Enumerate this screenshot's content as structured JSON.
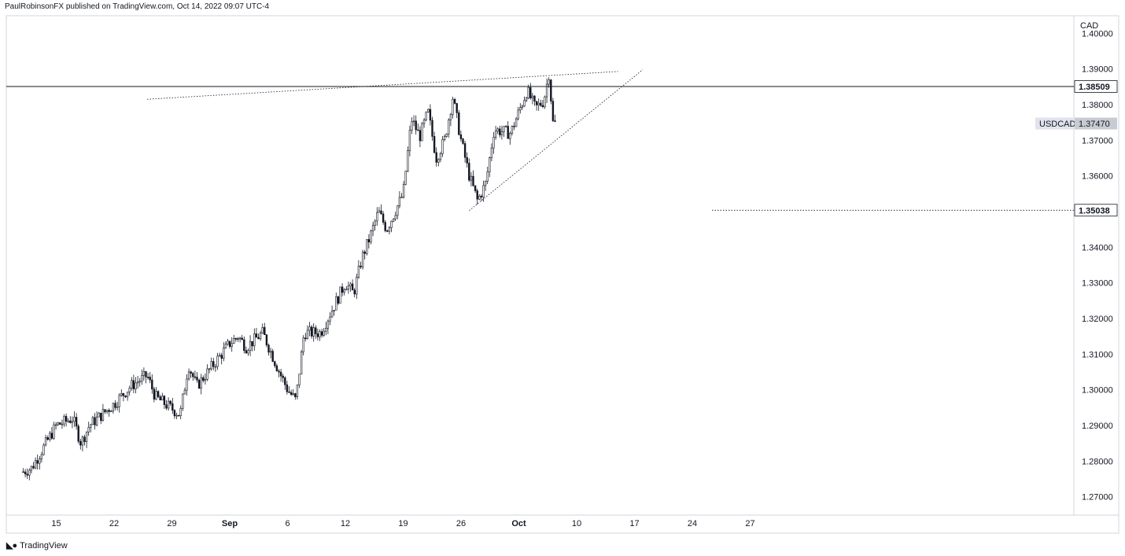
{
  "header": {
    "attribution": "PaulRobinsonFX published on TradingView.com, Oct 14, 2022 09:07 UTC-4"
  },
  "footer": {
    "brand": "TradingView",
    "logo_icon": "tradingview-logo-icon"
  },
  "colors": {
    "candle": "#131722",
    "grid_border": "#d1d4dc",
    "label_dark": "#131722",
    "label_gray": "#c8cbd1",
    "annotation": "#131722"
  },
  "chart_data": {
    "type": "candlestick",
    "symbol_label": "USDCAD",
    "currency": "CAD",
    "y_ticks": [
      "1.40000",
      "1.39000",
      "1.38000",
      "1.37000",
      "1.36000",
      "1.35000",
      "1.34000",
      "1.33000",
      "1.32000",
      "1.31000",
      "1.30000",
      "1.29000",
      "1.28000",
      "1.27000"
    ],
    "x_ticks": [
      "15",
      "22",
      "29",
      "Sep",
      "6",
      "12",
      "19",
      "26",
      "Oct",
      "10",
      "17",
      "24",
      "27"
    ],
    "x_ticks_bold": [
      "Sep",
      "Oct"
    ],
    "ylim": [
      1.2655,
      1.4045
    ],
    "last_price": {
      "label": "USDCAD",
      "value": "1.37470"
    },
    "horizontal_levels": [
      {
        "value": "1.38509",
        "style": "solid"
      },
      {
        "value": "1.35038",
        "style": "dotted"
      }
    ],
    "trendlines": [
      {
        "name": "upper-wedge-line",
        "from": [
          "2022-08-26",
          1.3815
        ],
        "to": [
          "2022-10-22",
          1.3893
        ]
      },
      {
        "name": "lower-wedge-line",
        "from": [
          "2022-10-04",
          1.3503
        ],
        "to": [
          "2022-10-25",
          1.3898
        ]
      }
    ],
    "trend_path": [
      [
        "2022-08-11",
        1.277
      ],
      [
        "2022-08-12",
        1.278
      ],
      [
        "2022-08-15",
        1.29
      ],
      [
        "2022-08-17",
        1.292
      ],
      [
        "2022-08-18",
        1.285
      ],
      [
        "2022-08-19",
        1.29
      ],
      [
        "2022-08-22",
        1.296
      ],
      [
        "2022-08-24",
        1.301
      ],
      [
        "2022-08-26",
        1.304
      ],
      [
        "2022-08-27",
        1.298
      ],
      [
        "2022-08-30",
        1.293
      ],
      [
        "2022-08-31",
        1.307
      ],
      [
        "2022-09-01",
        1.301
      ],
      [
        "2022-09-02",
        1.304
      ],
      [
        "2022-09-05",
        1.313
      ],
      [
        "2022-09-06",
        1.315
      ],
      [
        "2022-09-07",
        1.312
      ],
      [
        "2022-09-08",
        1.314
      ],
      [
        "2022-09-09",
        1.316
      ],
      [
        "2022-09-11",
        1.305
      ],
      [
        "2022-09-12",
        1.3
      ],
      [
        "2022-09-13",
        1.297
      ],
      [
        "2022-09-14",
        1.316
      ],
      [
        "2022-09-16",
        1.316
      ],
      [
        "2022-09-19",
        1.33
      ],
      [
        "2022-09-20",
        1.327
      ],
      [
        "2022-09-21",
        1.337
      ],
      [
        "2022-09-22",
        1.343
      ],
      [
        "2022-09-23",
        1.35
      ],
      [
        "2022-09-24",
        1.345
      ],
      [
        "2022-09-26",
        1.355
      ],
      [
        "2022-09-27",
        1.376
      ],
      [
        "2022-09-28",
        1.371
      ],
      [
        "2022-09-29",
        1.378
      ],
      [
        "2022-09-30",
        1.365
      ],
      [
        "2022-10-01",
        1.37
      ],
      [
        "2022-10-02",
        1.382
      ],
      [
        "2022-10-03",
        1.37
      ],
      [
        "2022-10-04",
        1.36
      ],
      [
        "2022-10-05",
        1.353
      ],
      [
        "2022-10-06",
        1.358
      ],
      [
        "2022-10-07",
        1.373
      ],
      [
        "2022-10-09",
        1.372
      ],
      [
        "2022-10-10",
        1.378
      ],
      [
        "2022-10-11",
        1.384
      ],
      [
        "2022-10-12",
        1.379
      ],
      [
        "2022-10-13",
        1.381
      ],
      [
        "2022-10-13T18",
        1.39
      ],
      [
        "2022-10-14",
        1.375
      ],
      [
        "2022-10-14T12",
        1.3747
      ]
    ]
  }
}
